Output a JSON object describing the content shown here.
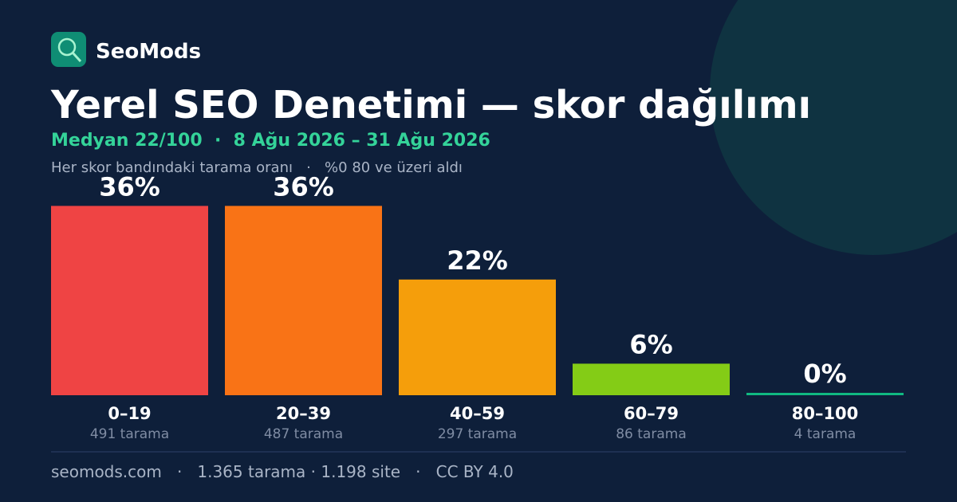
{
  "brand": "SeoMods",
  "chart_data": {
    "type": "bar",
    "title": "Yerel SEO Denetimi — skor dağılımı",
    "subtitle": "Medyan 22/100  ·  8 Ağu 2026 – 31 Ağu 2026",
    "caption": "Her skor bandındaki tarama oranı   ·   %0 80 ve üzeri aldı",
    "categories": [
      "0–19",
      "20–39",
      "40–59",
      "60–79",
      "80–100"
    ],
    "values": [
      36,
      36,
      22,
      6,
      0
    ],
    "value_labels": [
      "36%",
      "36%",
      "22%",
      "6%",
      "0%"
    ],
    "count_labels": [
      "491 tarama",
      "487 tarama",
      "297 tarama",
      "86 tarama",
      "4 tarama"
    ],
    "colors": [
      "#ef4444",
      "#f97316",
      "#f59e0b",
      "#84cc16",
      "#10b981"
    ]
  },
  "footer": "seomods.com   ·   1.365 tarama · 1.198 site   ·   CC BY 4.0"
}
